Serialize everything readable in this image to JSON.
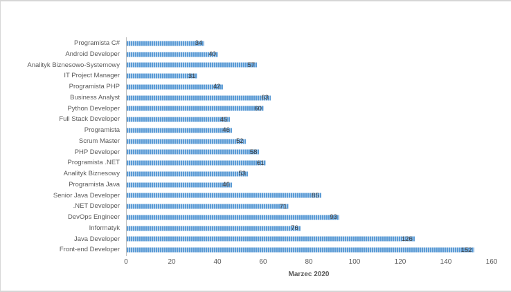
{
  "chart_data": {
    "type": "bar",
    "orientation": "horizontal",
    "title": "",
    "xlabel": "Marzec 2020",
    "ylabel": "",
    "xlim": [
      0,
      160
    ],
    "x_ticks": [
      0,
      20,
      40,
      60,
      80,
      100,
      120,
      140,
      160
    ],
    "grid": false,
    "legend": false,
    "data_labels": "inside-end",
    "categories": [
      "Programista C#",
      "Android Developer",
      "Analityk Biznesowo-Systemowy",
      "IT Project Manager",
      "Programista PHP",
      "Business Analyst",
      "Python Developer",
      "Full Stack Developer",
      "Programista",
      "Scrum Master",
      "PHP Developer",
      "Programista .NET",
      "Analityk Biznesowy",
      "Programista Java",
      "Senior Java Developer",
      ".NET Developer",
      "DevOps Engineer",
      "Informatyk",
      "Java Developer",
      "Front-end Developer"
    ],
    "values": [
      34,
      40,
      57,
      31,
      42,
      63,
      60,
      45,
      46,
      52,
      58,
      61,
      53,
      46,
      85,
      71,
      93,
      76,
      126,
      152
    ],
    "colors": {
      "bar_primary": "#5B9BD5",
      "bar_stripe": "#BCD6EE",
      "axis_line": "#BFBFBF",
      "label_text": "#595959",
      "value_text": "#404040",
      "border": "#D6D6D6"
    }
  }
}
